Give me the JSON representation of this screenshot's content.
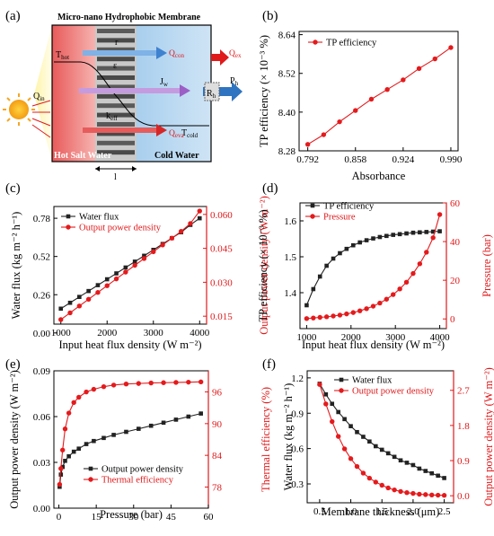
{
  "colors": {
    "black_series": "#222222",
    "red_series": "#e41a1c",
    "red_axis": "#e0191b"
  },
  "panels": [
    {
      "id": "a",
      "label": "(a)"
    },
    {
      "id": "b",
      "label": "(b)"
    },
    {
      "id": "c",
      "label": "(c)"
    },
    {
      "id": "d",
      "label": "(d)"
    },
    {
      "id": "e",
      "label": "(e)"
    },
    {
      "id": "f",
      "label": "(f)"
    }
  ],
  "diagram": {
    "title": "Micro-nano Hydrophobic Membrane",
    "hot_label": "Hot Salt Water",
    "cold_label": "Cold Water",
    "t_hot": "T",
    "t_hot_sub": "hot",
    "t_cold": "T",
    "t_cold_sub": "cold",
    "q_in": "Q",
    "q_in_sub": "in",
    "r": "r",
    "eps": "ε",
    "jw": "J",
    "jw_sub": "w",
    "keff": "k",
    "keff_sub": "eff",
    "q_con": "Q",
    "q_con_sub": "con",
    "q_eva": "Q",
    "q_eva_sub": "eva",
    "q_ex": "Q",
    "q_ex_sub": "ex",
    "rh": "R",
    "rh_sub": "h",
    "ph": "P",
    "ph_sub": "h",
    "thickness": "l"
  },
  "chart_data": [
    {
      "panel": "b",
      "type": "line",
      "xlabel": "Absorbance",
      "ylabel": "TP efficiency  (× 10⁻³ %)",
      "xlim": [
        0.78,
        1.0
      ],
      "ylim": [
        8.28,
        8.65
      ],
      "xticks": [
        "0.792",
        "0.858",
        "0.924",
        "0.990"
      ],
      "yticks": [
        "8.28",
        "8.40",
        "8.52",
        "8.64"
      ],
      "series": [
        {
          "name": "TP efficiency",
          "color": "red",
          "marker": "circle",
          "x": [
            0.792,
            0.814,
            0.836,
            0.858,
            0.88,
            0.902,
            0.924,
            0.946,
            0.968,
            0.99
          ],
          "y": [
            8.3,
            8.33,
            8.37,
            8.405,
            8.44,
            8.47,
            8.5,
            8.535,
            8.565,
            8.6
          ]
        }
      ]
    },
    {
      "panel": "c",
      "type": "line",
      "xlabel": "Input heat flux density  (W m⁻²)",
      "ylabel": "Water flux  (kg m⁻² h⁻¹)",
      "ylabel_right": "Output power density  (W m⁻²)",
      "xlim": [
        850,
        4150
      ],
      "ylim": [
        0.06,
        0.86
      ],
      "ylim_right": [
        0.0115,
        0.0635
      ],
      "xticks": [
        "1000",
        "2000",
        "3000",
        "4000"
      ],
      "yticks": [
        "0.00",
        "0.26",
        "0.52",
        "0.78"
      ],
      "yticks_right": [
        "0.015",
        "0.030",
        "0.045",
        "0.060"
      ],
      "series": [
        {
          "name": "Water flux",
          "color": "black",
          "marker": "square",
          "axis": "left",
          "x": [
            1000,
            1200,
            1400,
            1600,
            1800,
            2000,
            2200,
            2400,
            2600,
            2800,
            3000,
            3200,
            3400,
            3600,
            3800,
            4000
          ],
          "y": [
            0.165,
            0.205,
            0.245,
            0.285,
            0.325,
            0.365,
            0.405,
            0.445,
            0.485,
            0.525,
            0.565,
            0.605,
            0.645,
            0.685,
            0.735,
            0.78
          ]
        },
        {
          "name": "Output power density",
          "color": "red",
          "marker": "circle",
          "axis": "right",
          "x": [
            1000,
            1200,
            1400,
            1600,
            1800,
            2000,
            2200,
            2400,
            2600,
            2800,
            3000,
            3200,
            3400,
            3600,
            3800,
            4000
          ],
          "y": [
            0.0135,
            0.0165,
            0.0195,
            0.0225,
            0.0255,
            0.0285,
            0.0315,
            0.0345,
            0.0375,
            0.0405,
            0.0435,
            0.0465,
            0.0495,
            0.0525,
            0.056,
            0.0615
          ]
        }
      ]
    },
    {
      "panel": "d",
      "type": "line",
      "xlabel": "Input heat flux density  (W m⁻²)",
      "ylabel": "TP efficiency  (× 10⁻³ %)",
      "ylabel_right": "Pressure (bar)",
      "xlim": [
        850,
        4150
      ],
      "ylim": [
        1.3,
        1.65
      ],
      "ylim_right": [
        -5,
        60
      ],
      "xticks": [
        "1000",
        "2000",
        "3000",
        "4000"
      ],
      "yticks": [
        "1.4",
        "1.5",
        "1.6"
      ],
      "yticks_right": [
        "0",
        "20",
        "40",
        "60"
      ],
      "series": [
        {
          "name": "TP efficiency",
          "color": "black",
          "marker": "square",
          "axis": "left",
          "x": [
            1000,
            1150,
            1300,
            1450,
            1600,
            1750,
            1900,
            2050,
            2200,
            2350,
            2500,
            2650,
            2800,
            2950,
            3100,
            3250,
            3400,
            3550,
            3700,
            3850,
            4000
          ],
          "y": [
            1.365,
            1.41,
            1.445,
            1.475,
            1.495,
            1.51,
            1.522,
            1.532,
            1.54,
            1.546,
            1.551,
            1.555,
            1.558,
            1.561,
            1.563,
            1.565,
            1.567,
            1.568,
            1.569,
            1.57,
            1.571
          ]
        },
        {
          "name": "Pressure",
          "color": "red",
          "marker": "circle",
          "axis": "right",
          "x": [
            1000,
            1150,
            1300,
            1450,
            1600,
            1750,
            1900,
            2050,
            2200,
            2350,
            2500,
            2650,
            2800,
            2950,
            3100,
            3250,
            3400,
            3550,
            3700,
            3850,
            4000
          ],
          "y": [
            0.2,
            0.5,
            0.8,
            1.1,
            1.5,
            2.0,
            2.6,
            3.3,
            4.2,
            5.3,
            6.6,
            8.2,
            10.2,
            12.6,
            15.5,
            19.0,
            23.5,
            28.5,
            34.5,
            42.0,
            54.0
          ]
        }
      ]
    },
    {
      "panel": "e",
      "type": "line",
      "xlabel": "Pressure (bar)",
      "ylabel": "Output power density  (W m⁻²)",
      "ylabel_right": "Thermal efficiency (%)",
      "xlim": [
        -2,
        60
      ],
      "ylim": [
        0,
        0.09
      ],
      "ylim_right": [
        74,
        100
      ],
      "xticks": [
        "0",
        "15",
        "30",
        "45",
        "60"
      ],
      "yticks": [
        "0.00",
        "0.03",
        "0.06",
        "0.09"
      ],
      "yticks_right": [
        "78",
        "84",
        "90",
        "96"
      ],
      "series": [
        {
          "name": "Output power density",
          "color": "black",
          "marker": "square",
          "axis": "left",
          "x": [
            0.3,
            0.8,
            1.5,
            2.5,
            4,
            6,
            8,
            11,
            14,
            18,
            22,
            27,
            32,
            37,
            42,
            47,
            52,
            57
          ],
          "y": [
            0.014,
            0.022,
            0.027,
            0.031,
            0.034,
            0.037,
            0.039,
            0.042,
            0.044,
            0.046,
            0.048,
            0.05,
            0.052,
            0.054,
            0.056,
            0.058,
            0.06,
            0.062
          ]
        },
        {
          "name": "Thermal efficiency",
          "color": "red",
          "marker": "circle",
          "axis": "right",
          "x": [
            0.3,
            0.8,
            1.5,
            2.5,
            4,
            6,
            8,
            11,
            14,
            18,
            22,
            27,
            32,
            37,
            42,
            47,
            52,
            57
          ],
          "y": [
            78.5,
            81.5,
            85,
            89,
            92,
            94,
            95,
            96,
            96.5,
            97,
            97.3,
            97.5,
            97.6,
            97.7,
            97.75,
            97.8,
            97.85,
            97.9
          ]
        }
      ]
    },
    {
      "panel": "f",
      "type": "line",
      "xlabel": "Membrane thickness  (μm)",
      "ylabel": "Water flux  (kg m⁻² h⁻¹)",
      "ylabel_right": "Output power density  (W m⁻²)",
      "xlim": [
        0.3,
        2.65
      ],
      "ylim": [
        0.14,
        1.26
      ],
      "ylim_right": [
        -0.18,
        3.2
      ],
      "xticks": [
        "0.5",
        "1.0",
        "1.5",
        "2.0",
        "2.5"
      ],
      "yticks": [
        "0.3",
        "0.6",
        "0.9",
        "1.2"
      ],
      "yticks_right": [
        "0.0",
        "0.9",
        "1.8",
        "2.7"
      ],
      "series": [
        {
          "name": "Water flux",
          "color": "black",
          "marker": "square",
          "axis": "left",
          "x": [
            0.5,
            0.6,
            0.7,
            0.8,
            0.9,
            1.0,
            1.1,
            1.2,
            1.3,
            1.4,
            1.5,
            1.6,
            1.7,
            1.8,
            1.9,
            2.0,
            2.1,
            2.2,
            2.3,
            2.4,
            2.5
          ],
          "y": [
            1.15,
            1.06,
            0.98,
            0.91,
            0.85,
            0.79,
            0.74,
            0.7,
            0.66,
            0.62,
            0.59,
            0.56,
            0.53,
            0.5,
            0.48,
            0.46,
            0.43,
            0.41,
            0.39,
            0.37,
            0.35
          ]
        },
        {
          "name": "Output power density",
          "color": "red",
          "marker": "circle",
          "axis": "right",
          "x": [
            0.5,
            0.6,
            0.7,
            0.8,
            0.9,
            1.0,
            1.1,
            1.2,
            1.3,
            1.4,
            1.5,
            1.6,
            1.7,
            1.8,
            1.9,
            2.0,
            2.1,
            2.2,
            2.3,
            2.4,
            2.5
          ],
          "y": [
            2.85,
            2.35,
            1.9,
            1.52,
            1.2,
            0.95,
            0.75,
            0.58,
            0.45,
            0.35,
            0.27,
            0.2,
            0.15,
            0.11,
            0.08,
            0.06,
            0.04,
            0.03,
            0.02,
            0.015,
            0.01
          ]
        }
      ]
    }
  ]
}
